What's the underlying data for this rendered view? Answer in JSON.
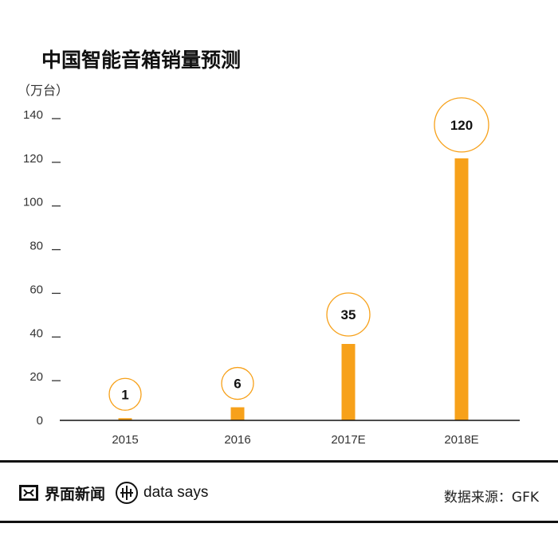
{
  "chart_data": {
    "type": "bar",
    "title": "中国智能音箱销量预测",
    "ylabel": "（万台）",
    "categories": [
      "2015",
      "2016",
      "2017E",
      "2018E"
    ],
    "values": [
      1,
      6,
      35,
      120
    ],
    "data_labels": [
      "1",
      "6",
      "35",
      "120"
    ],
    "ylim": [
      0,
      140
    ],
    "yticks": [
      0,
      20,
      40,
      60,
      80,
      100,
      120,
      140
    ],
    "grid": false,
    "legend": "none",
    "bar_color": "#F7A11A",
    "label_circle_color": "#F7A11A"
  },
  "footer": {
    "brand_name": "界面新闻",
    "brand_icon": "jiemian-logo-icon",
    "datasays_icon": "datasays-logo-icon",
    "datasays_text": "data says",
    "source": "数据来源：GFK"
  },
  "colors": {
    "accent": "#F7A11A",
    "rule": "#111111"
  }
}
